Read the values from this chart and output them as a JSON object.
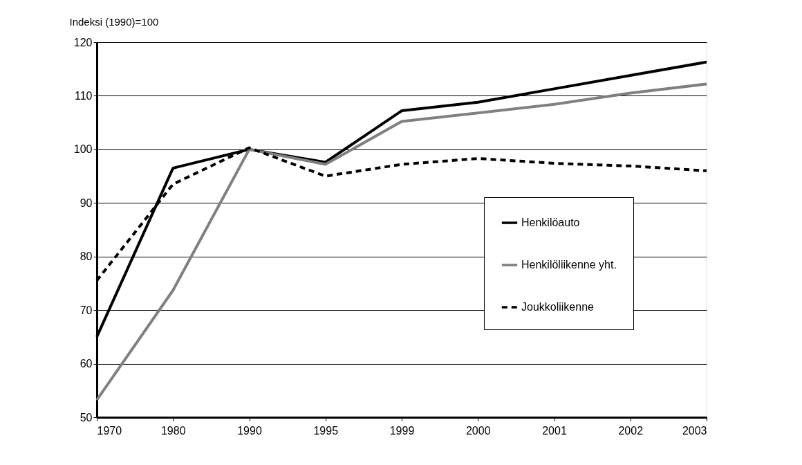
{
  "chart_data": {
    "type": "line",
    "ylabel": "Indeksi (1990)=100",
    "categories": [
      "1970",
      "1980",
      "1990",
      "1995",
      "1999",
      "2000",
      "2001",
      "2002",
      "2003"
    ],
    "series": [
      {
        "name": "Henkilöauto",
        "color": "#000000",
        "line_style": "solid",
        "values": [
          65,
          96.5,
          100,
          97.6,
          107.2,
          108.8,
          111.3,
          113.8,
          116.3
        ]
      },
      {
        "name": "Henkilöliikenne yht.",
        "color": "#808080",
        "line_style": "solid",
        "values": [
          53.2,
          73.7,
          100,
          97.2,
          105.2,
          106.8,
          108.4,
          110.5,
          112.2
        ]
      },
      {
        "name": "Joukkoliikenne",
        "color": "#000000",
        "line_style": "dashed",
        "values": [
          75.5,
          93.5,
          100.3,
          95,
          97.2,
          98.3,
          97.4,
          96.9,
          96
        ]
      }
    ],
    "ylim": [
      50,
      120
    ],
    "yticks": [
      50,
      60,
      70,
      80,
      90,
      100,
      110,
      120
    ],
    "grid": "y",
    "legend": "bottom right",
    "marker": "none"
  }
}
